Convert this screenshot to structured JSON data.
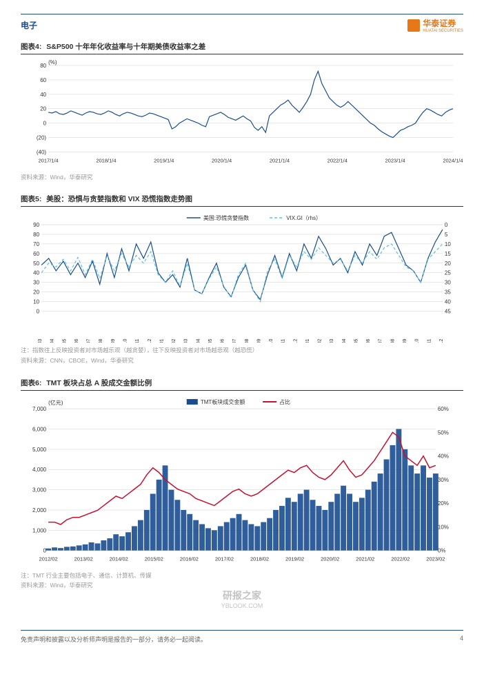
{
  "header": {
    "category": "电子",
    "logo_cn": "华泰证券",
    "logo_en": "HUATAI SECURITIES"
  },
  "chart4": {
    "title_num": "图表4:",
    "title_text": "S&P500 十年年化收益率与十年期美债收益率之差",
    "ylabel": "(%)",
    "ylim": [
      -40,
      80
    ],
    "ytick_step": 20,
    "yticks": [
      -40,
      -20,
      0,
      20,
      40,
      60,
      80
    ],
    "ytick_labels": [
      "(40)",
      "(20)",
      "0",
      "20",
      "40",
      "60",
      "80"
    ],
    "xticks": [
      "2017/1/4",
      "2018/1/4",
      "2019/1/4",
      "2020/1/4",
      "2021/1/4",
      "2022/1/4",
      "2023/1/4",
      "2024/1/4"
    ],
    "line_color": "#1a4d8f",
    "grid_color": "#d0d0d0",
    "background_color": "#ffffff",
    "data": [
      15,
      14,
      16,
      13,
      12,
      14,
      17,
      15,
      13,
      11,
      14,
      16,
      15,
      13,
      12,
      14,
      17,
      15,
      12,
      10,
      13,
      15,
      14,
      12,
      10,
      9,
      11,
      14,
      13,
      11,
      9,
      7,
      5,
      -8,
      -5,
      0,
      3,
      6,
      4,
      2,
      0,
      -3,
      -5,
      9,
      11,
      13,
      15,
      12,
      8,
      6,
      4,
      7,
      10,
      6,
      3,
      -6,
      -10,
      -5,
      -13,
      10,
      15,
      20,
      25,
      28,
      32,
      25,
      20,
      15,
      22,
      30,
      40,
      60,
      72,
      55,
      45,
      35,
      30,
      25,
      22,
      25,
      30,
      25,
      20,
      15,
      10,
      5,
      0,
      -3,
      -8,
      -12,
      -15,
      -18,
      -20,
      -15,
      -10,
      -8,
      -5,
      -3,
      0,
      8,
      15,
      20,
      18,
      15,
      12,
      10,
      15,
      18,
      20
    ],
    "source": "资料来源：Wind，华泰研究"
  },
  "chart5": {
    "title_num": "图表5:",
    "title_text": "美股：恐惧与贪婪指数和 VIX 恐慌指数走势图",
    "legend": [
      "美国:恐慌贪婪指数",
      "VIX.GI（rhs）"
    ],
    "y1lim": [
      0,
      90
    ],
    "y1ticks": [
      0,
      10,
      20,
      30,
      40,
      50,
      60,
      70,
      80,
      90
    ],
    "y2lim": [
      0,
      45
    ],
    "y2ticks": [
      0,
      5,
      10,
      15,
      20,
      25,
      30,
      35,
      40,
      45
    ],
    "y2_inverted": true,
    "xticks": [
      "2021/03",
      "2021/04",
      "2021/05",
      "2021/06",
      "2021/07",
      "2021/08",
      "2021/09",
      "2021/10",
      "2021/11",
      "2021/12",
      "2022/01",
      "2022/02",
      "2022/03",
      "2022/04",
      "2022/05",
      "2022/06",
      "2022/07",
      "2022/08",
      "2022/09",
      "2022/10",
      "2022/11",
      "2022/12",
      "2023/01",
      "2023/02",
      "2023/03",
      "2023/04",
      "2023/05",
      "2023/06",
      "2023/07",
      "2023/08",
      "2023/09",
      "2023/10",
      "2023/11",
      "2023/12"
    ],
    "line1_color": "#1a4d8f",
    "line2_color": "#5bc0de",
    "line2_dash": "4,3",
    "grid_color": "#d0d0d0",
    "series1": [
      48,
      55,
      42,
      52,
      38,
      50,
      35,
      52,
      28,
      60,
      35,
      65,
      42,
      70,
      55,
      72,
      40,
      30,
      38,
      25,
      55,
      22,
      18,
      35,
      50,
      25,
      15,
      35,
      48,
      22,
      12,
      38,
      58,
      35,
      60,
      42,
      70,
      55,
      78,
      65,
      48,
      55,
      40,
      62,
      48,
      70,
      58,
      78,
      82,
      65,
      48,
      42,
      30,
      55,
      72,
      85
    ],
    "series2": [
      25,
      20,
      22,
      18,
      24,
      17,
      26,
      18,
      28,
      16,
      24,
      15,
      22,
      16,
      20,
      14,
      26,
      30,
      24,
      32,
      20,
      34,
      36,
      28,
      22,
      32,
      38,
      26,
      20,
      34,
      40,
      24,
      18,
      28,
      16,
      22,
      14,
      18,
      12,
      16,
      20,
      18,
      24,
      16,
      20,
      14,
      18,
      12,
      10,
      16,
      22,
      24,
      30,
      18,
      14,
      10
    ],
    "note": "注：指数往上反映投资者对市场越乐观（越贪婪），往下反映投资者对市场越悲观（越恐慌）",
    "source": "资料来源：CNN，CBOE，Wind，华泰研究"
  },
  "chart6": {
    "title_num": "图表6:",
    "title_text": "TMT 板块占总 A 股成交金额比例",
    "ylabel": "(亿元)",
    "legend": [
      "TMT板块成交金额",
      "占比"
    ],
    "y1lim": [
      0,
      7000
    ],
    "y1ticks": [
      0,
      1000,
      2000,
      3000,
      4000,
      5000,
      6000,
      7000
    ],
    "y2lim": [
      0,
      60
    ],
    "y2ticks": [
      0,
      10,
      20,
      30,
      40,
      50,
      60
    ],
    "y2_suffix": "%",
    "xticks": [
      "2012/02",
      "2013/02",
      "2014/02",
      "2015/02",
      "2016/02",
      "2017/02",
      "2018/02",
      "2019/02",
      "2020/02",
      "2021/02",
      "2022/02",
      "2023/02"
    ],
    "bar_color": "#1a4d8f",
    "line_color": "#c8102e",
    "grid_color": "#d0d0d0",
    "bars": [
      100,
      150,
      120,
      180,
      200,
      250,
      300,
      400,
      350,
      500,
      600,
      800,
      700,
      900,
      1200,
      1500,
      2000,
      2800,
      3500,
      4200,
      3000,
      2500,
      2000,
      1800,
      1500,
      1300,
      1100,
      1000,
      1200,
      1400,
      1600,
      1800,
      1500,
      1300,
      1200,
      1400,
      1600,
      2000,
      2200,
      2600,
      2400,
      2800,
      3000,
      2500,
      2200,
      2000,
      2400,
      2800,
      3200,
      2800,
      2400,
      2600,
      3000,
      3400,
      3800,
      4500,
      5200,
      6000,
      5000,
      4200,
      3800,
      4200,
      3600,
      3800
    ],
    "line": [
      12,
      12,
      11,
      13,
      14,
      14,
      15,
      16,
      17,
      19,
      21,
      23,
      22,
      24,
      26,
      28,
      32,
      35,
      33,
      30,
      28,
      26,
      25,
      24,
      22,
      21,
      20,
      19,
      21,
      23,
      25,
      26,
      24,
      23,
      24,
      26,
      28,
      30,
      32,
      34,
      33,
      35,
      36,
      33,
      31,
      30,
      32,
      35,
      38,
      34,
      31,
      32,
      35,
      38,
      42,
      46,
      50,
      48,
      40,
      38,
      36,
      40,
      35,
      36
    ],
    "note": "注：TMT 行业主要包括电子、通信、计算机、传媒",
    "source": "资料来源：Wind，华泰研究"
  },
  "footer": {
    "disclaimer": "免责声明和披露以及分析师声明是报告的一部分，请务必一起阅读。",
    "page_num": "4"
  },
  "watermark": "研报之家\nYBLOOK.COM"
}
